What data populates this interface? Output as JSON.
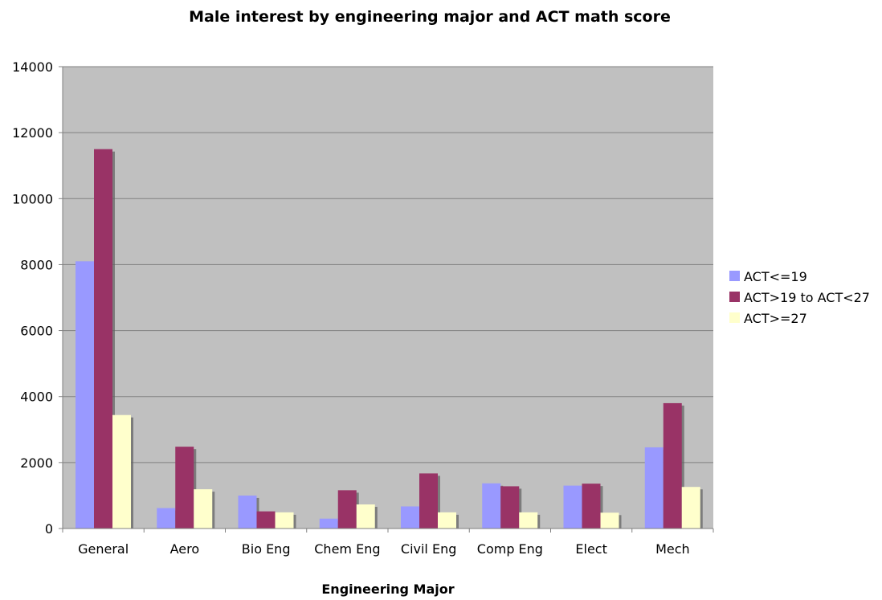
{
  "chart_data": {
    "type": "bar",
    "title": "Male interest by engineering major and ACT math score",
    "xlabel": "Engineering Major",
    "ylabel": "",
    "ylim": [
      0,
      14000
    ],
    "yticks": [
      "0",
      "2000",
      "4000",
      "6000",
      "8000",
      "10000",
      "12000",
      "14000"
    ],
    "grid": true,
    "legend_position": "right",
    "categories": [
      "General",
      "Aero",
      "Bio Eng",
      "Chem Eng",
      "Civil Eng",
      "Comp Eng",
      "Elect",
      "Mech"
    ],
    "series": [
      {
        "name": "ACT<=19",
        "color": "#9999ff",
        "values": [
          8100,
          620,
          1000,
          300,
          670,
          1370,
          1300,
          2460
        ]
      },
      {
        "name": "ACT>19 to ACT<27",
        "color": "#993366",
        "values": [
          11500,
          2480,
          520,
          1160,
          1670,
          1280,
          1360,
          3800
        ]
      },
      {
        "name": "ACT>=27",
        "color": "#ffffcc",
        "values": [
          3440,
          1190,
          490,
          730,
          490,
          490,
          480,
          1260
        ]
      }
    ],
    "plot_background": "#c0c0c0",
    "grid_color": "#808080"
  }
}
